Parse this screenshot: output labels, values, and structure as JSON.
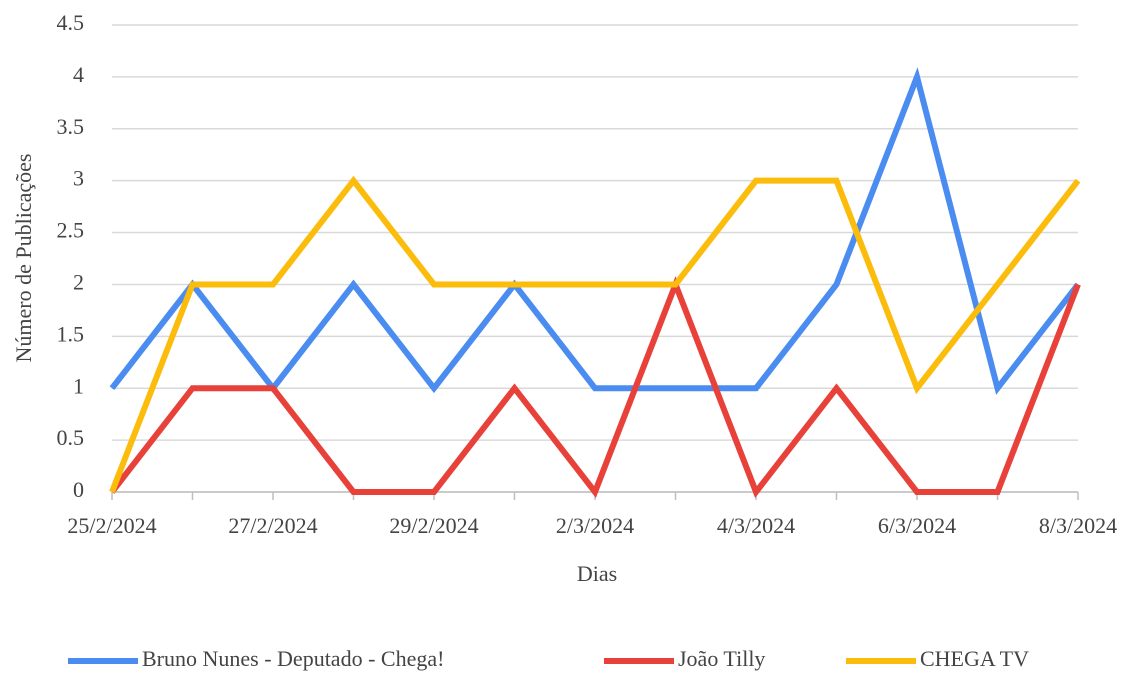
{
  "chart_data": {
    "type": "line",
    "x_label": "Dias",
    "y_label": "Número de Publicações",
    "categories": [
      "25/2/2024",
      null,
      "27/2/2024",
      null,
      "29/2/2024",
      null,
      "2/3/2024",
      null,
      "4/3/2024",
      null,
      "6/3/2024",
      null,
      "8/3/2024"
    ],
    "series": [
      {
        "name": "Bruno Nunes - Deputado - Chega!",
        "color": "#4a8cef",
        "values": [
          1,
          2,
          1,
          2,
          1,
          2,
          1,
          1,
          1,
          2,
          4,
          1,
          2
        ]
      },
      {
        "name": "João Tilly",
        "color": "#e8413a",
        "values": [
          0,
          1,
          1,
          0,
          0,
          1,
          0,
          2,
          0,
          1,
          0,
          0,
          2
        ]
      },
      {
        "name": "CHEGA TV",
        "color": "#fbbc0b",
        "values": [
          0,
          2,
          2,
          3,
          2,
          2,
          2,
          2,
          3,
          3,
          1,
          2,
          3
        ]
      }
    ],
    "ylim": [
      0,
      4.5
    ],
    "yticks": [
      0,
      0.5,
      1,
      1.5,
      2,
      2.5,
      3,
      3.5,
      4,
      4.5
    ],
    "grid": true,
    "legend": "bottom"
  }
}
